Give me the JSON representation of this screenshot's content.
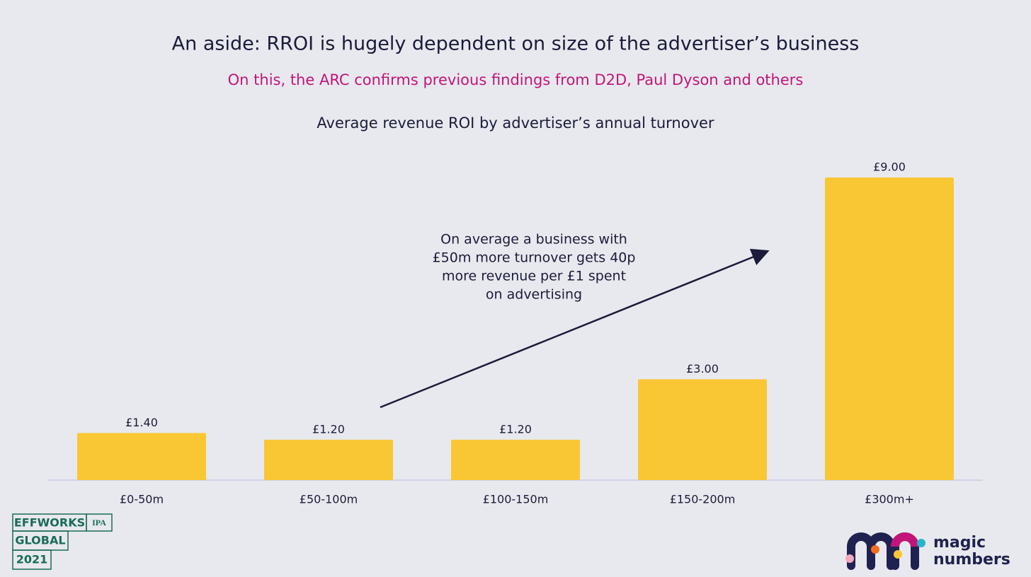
{
  "chart_data": {
    "type": "bar",
    "title": "An aside: RROI is hugely dependent on size of the advertiser’s business",
    "subtitle": "On this, the ARC confirms previous findings from D2D, Paul Dyson and others",
    "chart_title": "Average revenue ROI by advertiser’s annual turnover",
    "categories": [
      "£0-50m",
      "£50-100m",
      "£100-150m",
      "£150-200m",
      "£300m+"
    ],
    "values": [
      1.4,
      1.2,
      1.2,
      3.0,
      9.0
    ],
    "value_labels": [
      "£1.40",
      "£1.20",
      "£1.20",
      "£3.00",
      "£9.00"
    ],
    "color": "#f9c733",
    "annotation": [
      "On average a business with",
      "£50m more turnover gets 40p",
      "more revenue per £1 spent",
      "on advertising"
    ]
  },
  "logos": {
    "effworks": [
      "EFFWORKS",
      "IPA",
      "GLOBAL",
      "2021"
    ],
    "magic_numbers": [
      "magic",
      "numbers"
    ]
  }
}
